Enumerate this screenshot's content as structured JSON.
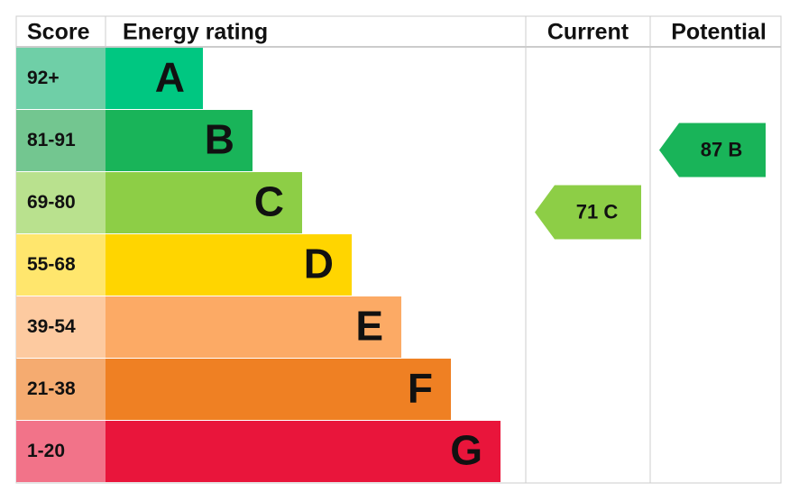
{
  "header": {
    "score": "Score",
    "rating": "Energy rating",
    "current": "Current",
    "potential": "Potential"
  },
  "bands": [
    {
      "score": "92+",
      "letter": "A",
      "color": "#00c781",
      "score_color": "#6fcfa7"
    },
    {
      "score": "81-91",
      "letter": "B",
      "color": "#19b459",
      "score_color": "#73c690"
    },
    {
      "score": "69-80",
      "letter": "C",
      "color": "#8dce46",
      "score_color": "#b9e18e"
    },
    {
      "score": "55-68",
      "letter": "D",
      "color": "#ffd500",
      "score_color": "#ffe66d"
    },
    {
      "score": "39-54",
      "letter": "E",
      "color": "#fcaa65",
      "score_color": "#fdcaa0"
    },
    {
      "score": "21-38",
      "letter": "F",
      "color": "#ef8023",
      "score_color": "#f5ab70"
    },
    {
      "score": "1-20",
      "letter": "G",
      "color": "#e9153b",
      "score_color": "#f27389"
    }
  ],
  "current": {
    "label": "71 C"
  },
  "potential": {
    "label": "87 B"
  }
}
